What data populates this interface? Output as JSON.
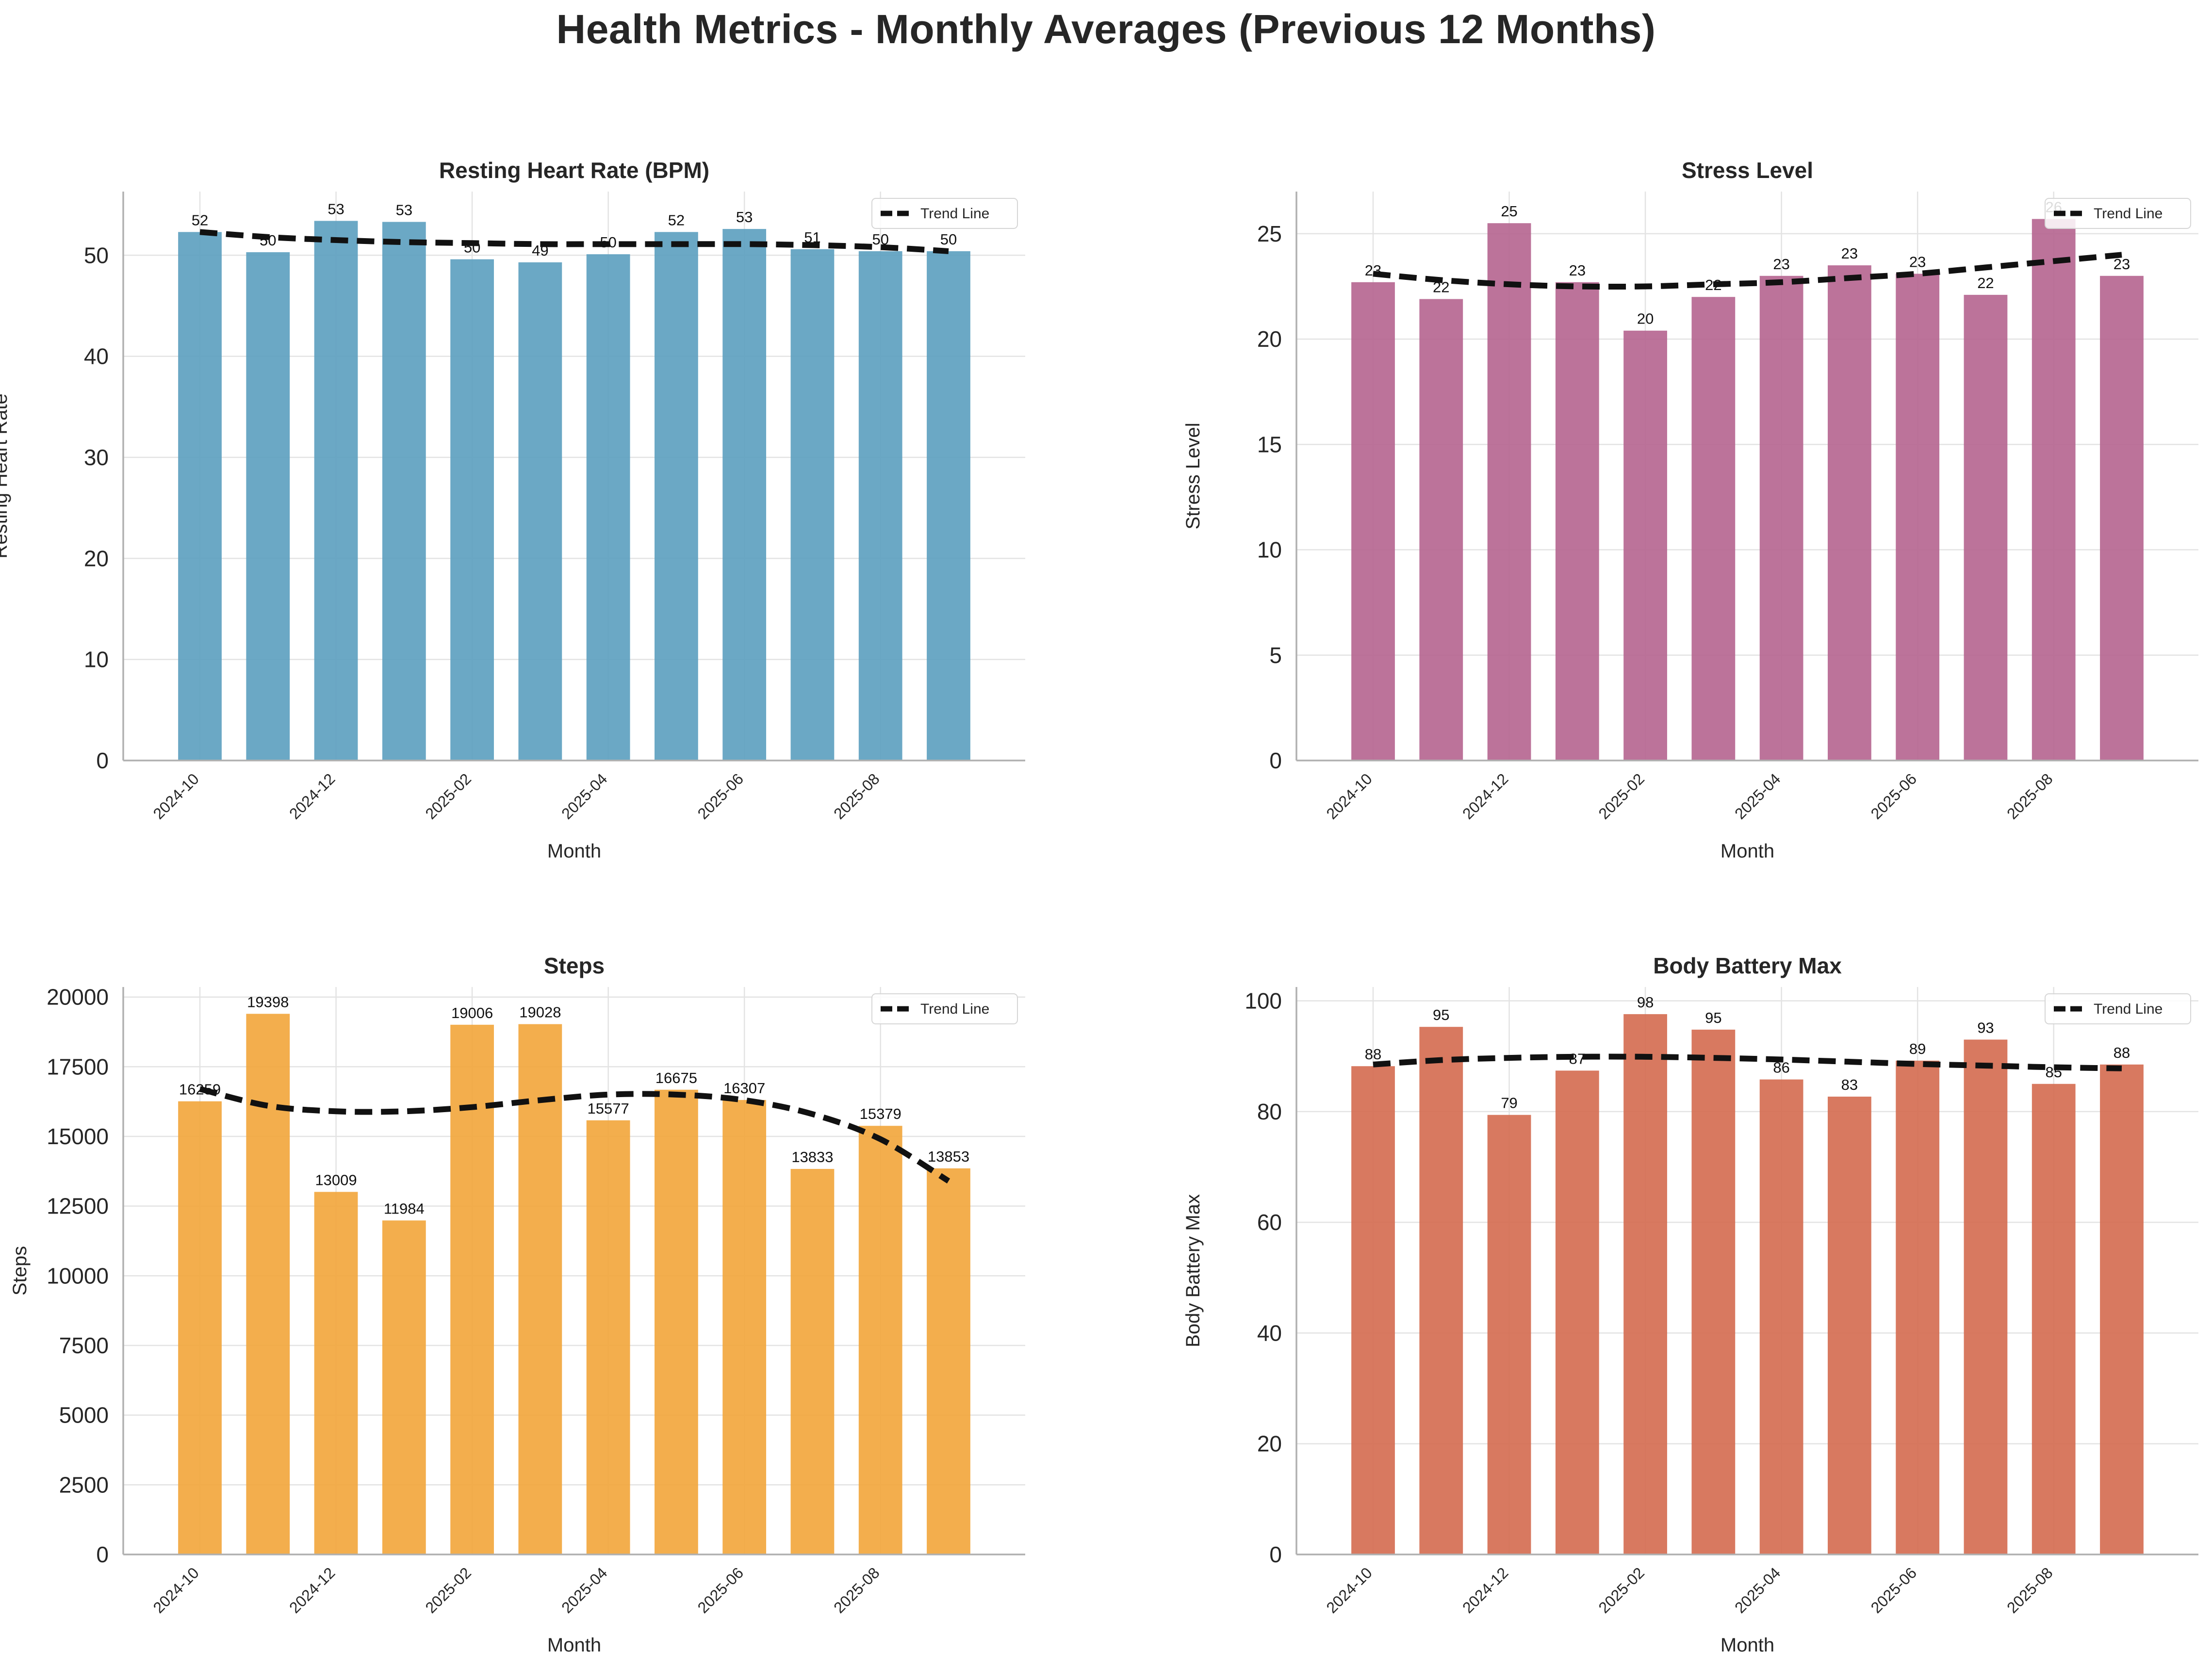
{
  "title": "Health Metrics - Monthly Averages (Previous 12 Months)",
  "chart_data": [
    {
      "id": "rhr",
      "type": "bar",
      "title": "Resting Heart Rate (BPM)",
      "xlabel": "Month",
      "ylabel": "Resting Heart Rate",
      "color": "#5b9fbf",
      "ylim": [
        0,
        56.3
      ],
      "yticks": [
        0,
        10,
        20,
        30,
        40,
        50
      ],
      "categories": [
        "2024-10",
        "2024-11",
        "2024-12",
        "2025-01",
        "2025-02",
        "2025-03",
        "2025-04",
        "2025-05",
        "2025-06",
        "2025-07",
        "2025-08",
        "2025-09"
      ],
      "xtick_labels": [
        "2024-10",
        "2024-12",
        "2025-02",
        "2025-04",
        "2025-06",
        "2025-08"
      ],
      "values": [
        52.3,
        50.3,
        53.4,
        53.3,
        49.6,
        49.3,
        50.1,
        52.3,
        52.6,
        50.6,
        50.4,
        50.4
      ],
      "data_labels": [
        "52",
        "50",
        "53",
        "53",
        "50",
        "49",
        "50",
        "52",
        "53",
        "51",
        "50",
        "50"
      ],
      "trend": [
        52.3,
        51.8,
        51.5,
        51.3,
        51.2,
        51.1,
        51.1,
        51.1,
        51.1,
        51.0,
        50.8,
        50.4
      ],
      "legend": "Trend Line",
      "legend_loc": "upper right",
      "grid": true
    },
    {
      "id": "stress",
      "type": "bar",
      "title": "Stress Level",
      "xlabel": "Month",
      "ylabel": "Stress Level",
      "color": "#b5648f",
      "ylim": [
        0,
        27
      ],
      "yticks": [
        0,
        5,
        10,
        15,
        20,
        25
      ],
      "categories": [
        "2024-10",
        "2024-11",
        "2024-12",
        "2025-01",
        "2025-02",
        "2025-03",
        "2025-04",
        "2025-05",
        "2025-06",
        "2025-07",
        "2025-08",
        "2025-09"
      ],
      "xtick_labels": [
        "2024-10",
        "2024-12",
        "2025-02",
        "2025-04",
        "2025-06",
        "2025-08"
      ],
      "values": [
        22.7,
        21.9,
        25.5,
        22.7,
        20.4,
        22.0,
        23.0,
        23.5,
        23.1,
        22.1,
        25.7,
        23.0
      ],
      "data_labels": [
        "23",
        "22",
        "25",
        "23",
        "20",
        "22",
        "23",
        "23",
        "23",
        "22",
        "26",
        "23"
      ],
      "trend": [
        23.1,
        22.8,
        22.6,
        22.5,
        22.5,
        22.6,
        22.7,
        22.9,
        23.1,
        23.4,
        23.7,
        24.0
      ],
      "legend": "Trend Line",
      "legend_loc": "upper right",
      "grid": true
    },
    {
      "id": "steps",
      "type": "bar",
      "title": "Steps",
      "xlabel": "Month",
      "ylabel": "Steps",
      "color": "#f2a53a",
      "ylim": [
        0,
        20360
      ],
      "yticks": [
        0,
        2500,
        5000,
        7500,
        10000,
        12500,
        15000,
        17500,
        20000
      ],
      "categories": [
        "2024-10",
        "2024-11",
        "2024-12",
        "2025-01",
        "2025-02",
        "2025-03",
        "2025-04",
        "2025-05",
        "2025-06",
        "2025-07",
        "2025-08",
        "2025-09"
      ],
      "xtick_labels": [
        "2024-10",
        "2024-12",
        "2025-02",
        "2025-04",
        "2025-06",
        "2025-08"
      ],
      "values": [
        16259,
        19398,
        13009,
        11984,
        19006,
        19028,
        15577,
        16675,
        16307,
        13833,
        15379,
        13853
      ],
      "data_labels": [
        "16259",
        "19398",
        "13009",
        "11984",
        "19006",
        "19028",
        "15577",
        "16675",
        "16307",
        "13833",
        "15379",
        "13853"
      ],
      "trend": [
        16700,
        16100,
        15900,
        15900,
        16050,
        16300,
        16500,
        16500,
        16300,
        15800,
        14900,
        13400
      ],
      "legend": "Trend Line",
      "legend_loc": "upper right",
      "grid": true
    },
    {
      "id": "battery",
      "type": "bar",
      "title": "Body Battery Max",
      "xlabel": "Month",
      "ylabel": "Body Battery Max",
      "color": "#d46a4f",
      "ylim": [
        0,
        102.5
      ],
      "yticks": [
        0,
        20,
        40,
        60,
        80,
        100
      ],
      "categories": [
        "2024-10",
        "2024-11",
        "2024-12",
        "2025-01",
        "2025-02",
        "2025-03",
        "2025-04",
        "2025-05",
        "2025-06",
        "2025-07",
        "2025-08",
        "2025-09"
      ],
      "xtick_labels": [
        "2024-10",
        "2024-12",
        "2025-02",
        "2025-04",
        "2025-06",
        "2025-08"
      ],
      "values": [
        88.2,
        95.3,
        79.4,
        87.4,
        97.6,
        94.8,
        85.8,
        82.7,
        89.2,
        93.0,
        85.0,
        88.5
      ],
      "data_labels": [
        "88",
        "95",
        "79",
        "87",
        "98",
        "95",
        "86",
        "83",
        "89",
        "93",
        "85",
        "88"
      ],
      "trend": [
        88.5,
        89.3,
        89.7,
        89.9,
        89.9,
        89.7,
        89.4,
        89.0,
        88.6,
        88.3,
        88.0,
        87.8
      ],
      "legend": "Trend Line",
      "legend_loc": "upper right",
      "grid": true
    }
  ]
}
